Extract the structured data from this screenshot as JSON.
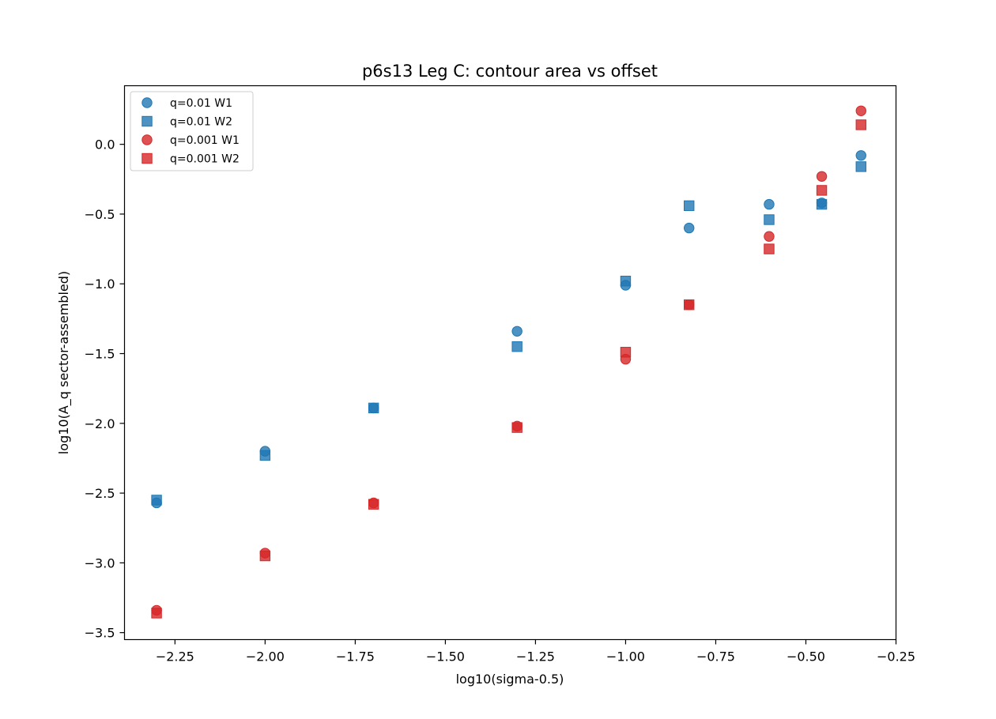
{
  "chart_data": {
    "type": "scatter",
    "title": "p6s13 Leg C: contour area vs offset",
    "xlabel": "log10(sigma-0.5)",
    "ylabel": "log10(A_q sector-assembled)",
    "xlim": [
      -2.39,
      -0.25
    ],
    "ylim": [
      -3.55,
      0.42
    ],
    "xticks": [
      -2.25,
      -2.0,
      -1.75,
      -1.5,
      -1.25,
      -1.0,
      -0.75,
      -0.5,
      -0.25
    ],
    "xtick_labels": [
      "−2.25",
      "−2.00",
      "−1.75",
      "−1.50",
      "−1.25",
      "−1.00",
      "−0.75",
      "−0.50",
      "−0.25"
    ],
    "yticks": [
      -3.5,
      -3.0,
      -2.5,
      -2.0,
      -1.5,
      -1.0,
      -0.5,
      0.0
    ],
    "ytick_labels": [
      "−3.5",
      "−3.0",
      "−2.5",
      "−2.0",
      "−1.5",
      "−1.0",
      "−0.5",
      "0.0"
    ],
    "grid": false,
    "legend_position": "top-left",
    "series": [
      {
        "name": "q=0.01 W1",
        "marker": "circle",
        "color": "#1f77b4",
        "points": [
          [
            -2.301,
            -2.57
          ],
          [
            -2.0,
            -2.2
          ],
          [
            -1.699,
            -1.89
          ],
          [
            -1.301,
            -1.34
          ],
          [
            -1.0,
            -1.01
          ],
          [
            -0.824,
            -0.6
          ],
          [
            -0.602,
            -0.43
          ],
          [
            -0.456,
            -0.42
          ],
          [
            -0.347,
            -0.08
          ]
        ]
      },
      {
        "name": "q=0.01 W2",
        "marker": "square",
        "color": "#1f77b4",
        "points": [
          [
            -2.301,
            -2.55
          ],
          [
            -2.0,
            -2.23
          ],
          [
            -1.699,
            -1.89
          ],
          [
            -1.301,
            -1.45
          ],
          [
            -1.0,
            -0.98
          ],
          [
            -0.824,
            -0.44
          ],
          [
            -0.602,
            -0.54
          ],
          [
            -0.456,
            -0.43
          ],
          [
            -0.347,
            -0.16
          ]
        ]
      },
      {
        "name": "q=0.001 W1",
        "marker": "circle",
        "color": "#d62728",
        "points": [
          [
            -2.301,
            -3.34
          ],
          [
            -2.0,
            -2.93
          ],
          [
            -1.699,
            -2.57
          ],
          [
            -1.301,
            -2.02
          ],
          [
            -1.0,
            -1.54
          ],
          [
            -0.824,
            -1.15
          ],
          [
            -0.602,
            -0.66
          ],
          [
            -0.456,
            -0.23
          ],
          [
            -0.347,
            0.24
          ]
        ]
      },
      {
        "name": "q=0.001 W2",
        "marker": "square",
        "color": "#d62728",
        "points": [
          [
            -2.301,
            -3.36
          ],
          [
            -2.0,
            -2.95
          ],
          [
            -1.699,
            -2.58
          ],
          [
            -1.301,
            -2.03
          ],
          [
            -1.0,
            -1.49
          ],
          [
            -0.824,
            -1.15
          ],
          [
            -0.602,
            -0.75
          ],
          [
            -0.456,
            -0.33
          ],
          [
            -0.347,
            0.14
          ]
        ]
      }
    ]
  }
}
